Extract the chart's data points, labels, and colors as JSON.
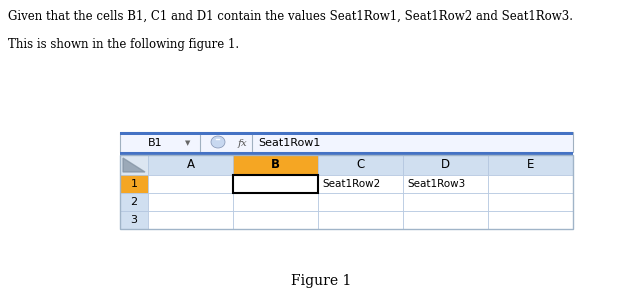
{
  "title_text": "Given that the cells B1, C1 and D1 contain the values Seat1Row1, Seat1Row2 and Seat1Row3.",
  "subtitle_text": "This is shown in the following figure 1.",
  "figure_label": "Figure 1",
  "formula_bar_cell": "B1",
  "formula_bar_value": "Seat1Row1",
  "col_headers": [
    "A",
    "B",
    "C",
    "D",
    "E"
  ],
  "row_headers": [
    "1",
    "2",
    "3"
  ],
  "cell_data": {
    "B1": "Seat1Row1",
    "C1": "Seat1Row2",
    "D1": "Seat1Row3"
  },
  "selected_col": "B",
  "selected_row": "1",
  "bg_color": "#ffffff",
  "col_header_bg": "#d0dff0",
  "col_selected_bg": "#f5a623",
  "row_header_bg": "#d0dff0",
  "row_selected_bg": "#f5a623",
  "cell_selected_border": "#000000",
  "grid_color": "#b0c4de",
  "formula_bar_bg": "#f0f4ff",
  "text_color": "#000000",
  "header_strip_color": "#4472c4",
  "sheet_border_color": "#a0b4c8",
  "sheet_top_strip": "#4472c4"
}
